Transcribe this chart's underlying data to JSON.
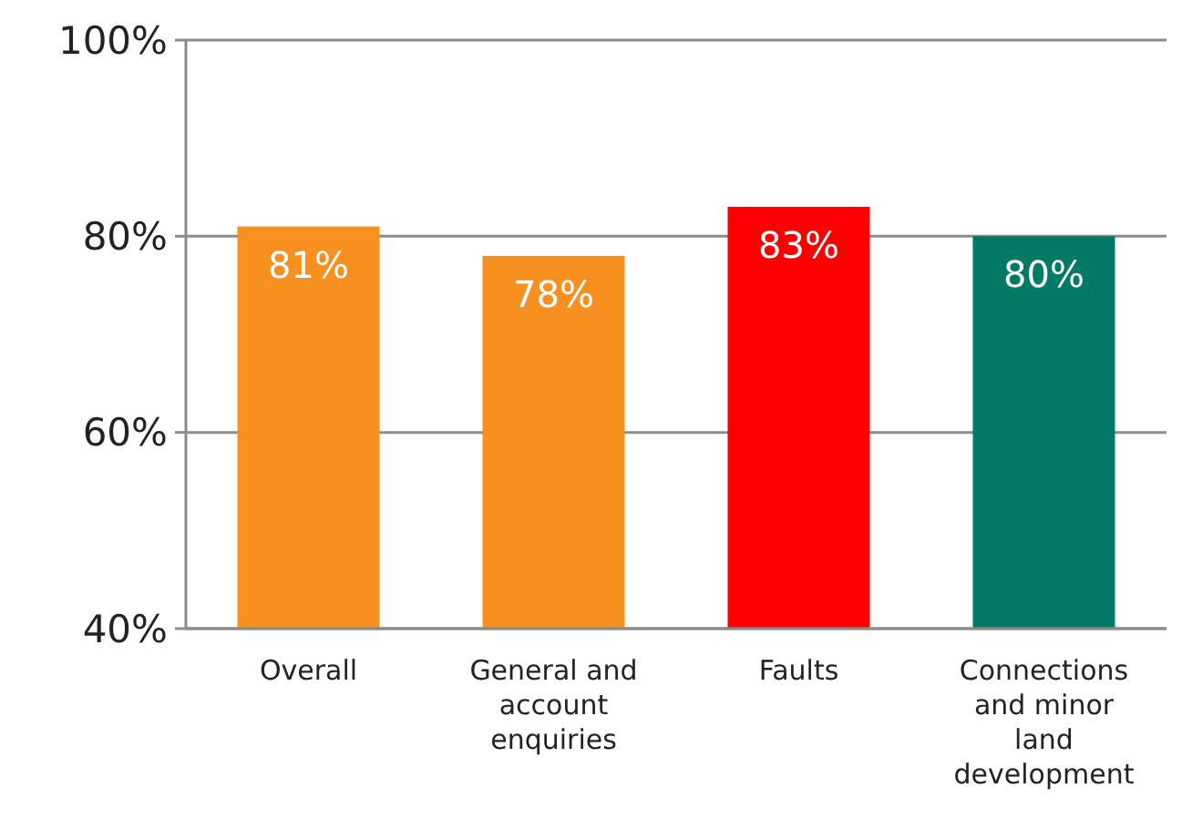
{
  "chart_data": {
    "type": "bar",
    "categories": [
      "Overall",
      "General and account enquiries",
      "Faults",
      "Connections and minor land development"
    ],
    "values": [
      81,
      78,
      83,
      80
    ],
    "colors": [
      "#f7901e",
      "#f7901e",
      "#ff0000",
      "#007a64"
    ],
    "value_labels": [
      "81%",
      "78%",
      "83%",
      "80%"
    ],
    "ylim": [
      40,
      100
    ],
    "yticks": [
      {
        "value": 40,
        "label": "40%"
      },
      {
        "value": 60,
        "label": "60%"
      },
      {
        "value": 80,
        "label": "80%"
      },
      {
        "value": 100,
        "label": "100%"
      }
    ],
    "grid": "y"
  }
}
